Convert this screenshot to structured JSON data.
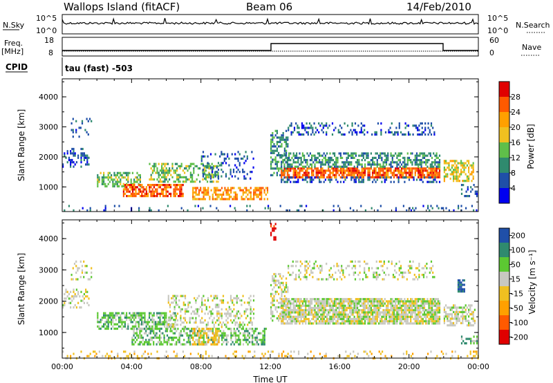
{
  "header": {
    "station": "Wallops Island (fitACF)",
    "beam": "Beam 06",
    "date": "14/Feb/2010"
  },
  "strip_labels": {
    "nsky": "N.Sky",
    "nsky_top": "10^5",
    "nsky_bottom": "10^0",
    "nsearch": "N.Search",
    "nsearch_top": "10^5",
    "nsearch_bottom": "10^0",
    "freq": "Freq.",
    "freq_unit": "[MHz]",
    "freq_top": "18",
    "freq_bottom": "8",
    "nave": "Nave",
    "nave_top": "60",
    "nave_bottom": "0",
    "cpid": "CPID",
    "cpid_text": "tau (fast) -503"
  },
  "colors": {
    "power_scale": [
      "#0000f0",
      "#1f4fa8",
      "#2f8a6e",
      "#5fbf4a",
      "#f0c020",
      "#ffa000",
      "#ff5a00",
      "#e00000"
    ],
    "velocity_scale": [
      "#e00000",
      "#ff5a00",
      "#ffa000",
      "#f0c020",
      "#c8c8c0",
      "#5cc832",
      "#2f8a6e",
      "#1f4fa8"
    ]
  },
  "chart_data": [
    {
      "type": "heatmap",
      "panel": "power",
      "ylabel": "Slant Range [km]",
      "yticks": [
        1000,
        2000,
        3000,
        4000
      ],
      "ylim": [
        180,
        4600
      ],
      "xlim": [
        0,
        24
      ],
      "xticks": [
        "00:00",
        "04:00",
        "08:00",
        "12:00",
        "16:00",
        "20:00",
        "00:00"
      ],
      "colorbar_label": "Power [dB]",
      "colorbar_ticks": [
        "4",
        "8",
        "12",
        "16",
        "20",
        "24",
        "28"
      ],
      "bands": [
        {
          "t0": 0.0,
          "t1": 1.5,
          "r0": 1700,
          "r1": 2300,
          "level": 1,
          "density": 0.35
        },
        {
          "t0": 0.5,
          "t1": 1.7,
          "r0": 2700,
          "r1": 3300,
          "level": 1,
          "density": 0.2
        },
        {
          "t0": 2.0,
          "t1": 4.5,
          "r0": 1050,
          "r1": 1500,
          "level": 3,
          "density": 0.5
        },
        {
          "t0": 3.5,
          "t1": 7.0,
          "r0": 700,
          "r1": 1100,
          "level": 6,
          "density": 0.7
        },
        {
          "t0": 5.0,
          "t1": 9.0,
          "r0": 1200,
          "r1": 1800,
          "level": 3,
          "density": 0.45
        },
        {
          "t0": 7.5,
          "t1": 11.8,
          "r0": 600,
          "r1": 1000,
          "level": 5,
          "density": 0.6
        },
        {
          "t0": 8.0,
          "t1": 11.0,
          "r0": 1300,
          "r1": 2200,
          "level": 1,
          "density": 0.25
        },
        {
          "t0": 12.0,
          "t1": 13.0,
          "r0": 1400,
          "r1": 2900,
          "level": 2,
          "density": 0.45
        },
        {
          "t0": 12.6,
          "t1": 21.8,
          "r0": 1350,
          "r1": 1650,
          "level": 6,
          "density": 0.8
        },
        {
          "t0": 12.6,
          "t1": 21.8,
          "r0": 1650,
          "r1": 2150,
          "level": 2,
          "density": 0.55
        },
        {
          "t0": 12.6,
          "t1": 21.8,
          "r0": 1150,
          "r1": 1350,
          "level": 1,
          "density": 0.35
        },
        {
          "t0": 13.0,
          "t1": 21.5,
          "r0": 2750,
          "r1": 3150,
          "level": 1,
          "density": 0.25
        },
        {
          "t0": 22.0,
          "t1": 23.7,
          "r0": 1200,
          "r1": 1900,
          "level": 4,
          "density": 0.55
        },
        {
          "t0": 23.0,
          "t1": 23.9,
          "r0": 700,
          "r1": 1100,
          "level": 1,
          "density": 0.25
        },
        {
          "t0": 0.0,
          "t1": 24.0,
          "r0": 200,
          "r1": 400,
          "level": 1,
          "density": 0.12
        }
      ]
    },
    {
      "type": "heatmap",
      "panel": "velocity",
      "ylabel": "Slant Range [km]",
      "yticks": [
        1000,
        2000,
        3000,
        4000
      ],
      "ylim": [
        180,
        4600
      ],
      "xlim": [
        0,
        24
      ],
      "xlabel": "Time UT",
      "xticks": [
        "00:00",
        "04:00",
        "08:00",
        "12:00",
        "16:00",
        "20:00",
        "00:00"
      ],
      "colorbar_label": "Velocity [m s⁻¹]",
      "colorbar_ticks": [
        "-200",
        "-100",
        "-50",
        "-15",
        "15",
        "50",
        "100",
        "200"
      ],
      "bands": [
        {
          "t0": 2.0,
          "t1": 6.5,
          "r0": 1150,
          "r1": 1650,
          "level": 5,
          "density": 0.6
        },
        {
          "t0": 4.0,
          "t1": 11.8,
          "r0": 650,
          "r1": 1150,
          "level": 5,
          "density": 0.55
        },
        {
          "t0": 7.5,
          "t1": 9.0,
          "r0": 650,
          "r1": 1150,
          "level": 3,
          "density": 0.5
        },
        {
          "t0": 6.0,
          "t1": 11.0,
          "r0": 1150,
          "r1": 2200,
          "level": 4,
          "density": 0.3
        },
        {
          "t0": 0.0,
          "t1": 1.5,
          "r0": 1800,
          "r1": 2400,
          "level": 4,
          "density": 0.3
        },
        {
          "t0": 0.5,
          "t1": 1.7,
          "r0": 2700,
          "r1": 3300,
          "level": 4,
          "density": 0.25
        },
        {
          "t0": 12.0,
          "t1": 13.0,
          "r0": 1400,
          "r1": 2900,
          "level": 4,
          "density": 0.45
        },
        {
          "t0": 12.6,
          "t1": 21.8,
          "r0": 1300,
          "r1": 2100,
          "level": 4,
          "density": 0.85
        },
        {
          "t0": 13.0,
          "t1": 21.5,
          "r0": 2700,
          "r1": 3300,
          "level": 4,
          "density": 0.25
        },
        {
          "t0": 22.0,
          "t1": 23.8,
          "r0": 1200,
          "r1": 1900,
          "level": 4,
          "density": 0.55
        },
        {
          "t0": 23.0,
          "t1": 23.9,
          "r0": 650,
          "r1": 900,
          "level": 5,
          "density": 0.45
        },
        {
          "t0": 22.8,
          "t1": 23.2,
          "r0": 2300,
          "r1": 2700,
          "level": 7,
          "density": 0.7
        },
        {
          "t0": 12.0,
          "t1": 12.3,
          "r0": 4000,
          "r1": 4500,
          "level": 0,
          "density": 0.5
        },
        {
          "t0": 0.0,
          "t1": 24.0,
          "r0": 200,
          "r1": 420,
          "level": 3,
          "density": 0.15
        }
      ]
    }
  ]
}
